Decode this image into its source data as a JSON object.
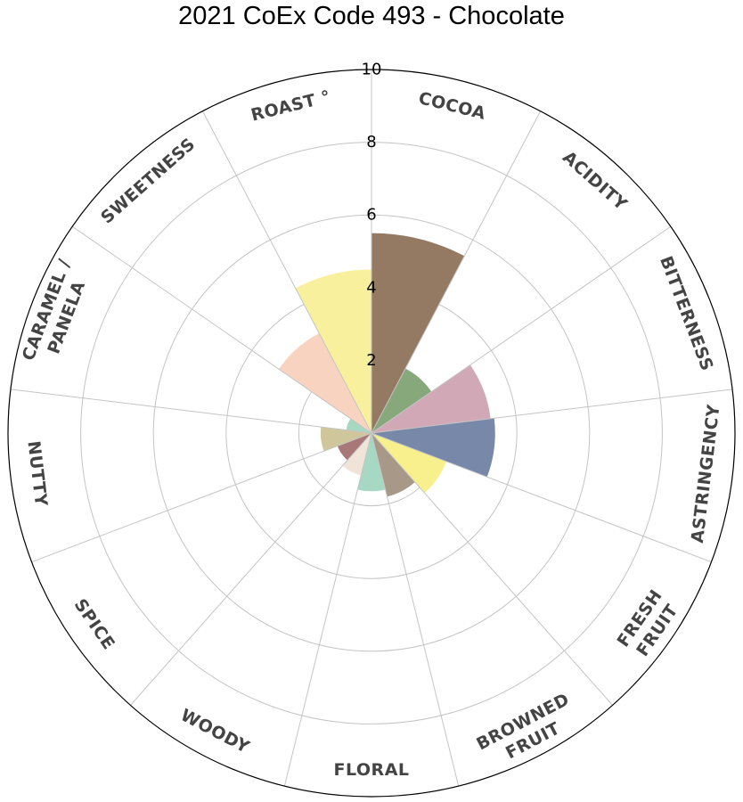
{
  "chart_data": {
    "type": "polar-bar",
    "title": "2021 CoEx Code 493 - Chocolate",
    "rlim": [
      0,
      10
    ],
    "radial_ticks": [
      "2",
      "4",
      "6",
      "8",
      "10"
    ],
    "grid": true,
    "categories": [
      {
        "label": [
          "COCOA"
        ],
        "value": 5.5,
        "color": "#957a63"
      },
      {
        "label": [
          "ACIDITY"
        ],
        "value": 2.0,
        "color": "#86a87b"
      },
      {
        "label": [
          "BITTERNESS"
        ],
        "value": 3.3,
        "color": "#d1a8b5"
      },
      {
        "label": [
          "ASTRINGENCY"
        ],
        "value": 3.4,
        "color": "#7888a8"
      },
      {
        "label": [
          "FRESH",
          "FRUIT"
        ],
        "value": 2.2,
        "color": "#f8f08c"
      },
      {
        "label": [
          "BROWNED",
          "FRUIT"
        ],
        "value": 1.8,
        "color": "#a89888"
      },
      {
        "label": [
          "FLORAL"
        ],
        "value": 1.6,
        "color": "#a6d8c3"
      },
      {
        "label": [
          "WOODY"
        ],
        "value": 1.2,
        "color": "#f0e4d8"
      },
      {
        "label": [
          "SPICE"
        ],
        "value": 1.0,
        "color": "#a87878"
      },
      {
        "label": [
          "NUTTY"
        ],
        "value": 1.4,
        "color": "#cfc69c"
      },
      {
        "label": [
          "CARAMEL /",
          "PANELA"
        ],
        "value": 0.7,
        "color": "#a6d8c3"
      },
      {
        "label": [
          "SWEETNESS"
        ],
        "value": 3.1,
        "color": "#f8d4c0"
      },
      {
        "label": [
          "ROAST °"
        ],
        "value": 4.5,
        "color": "#f8f09c"
      }
    ]
  }
}
